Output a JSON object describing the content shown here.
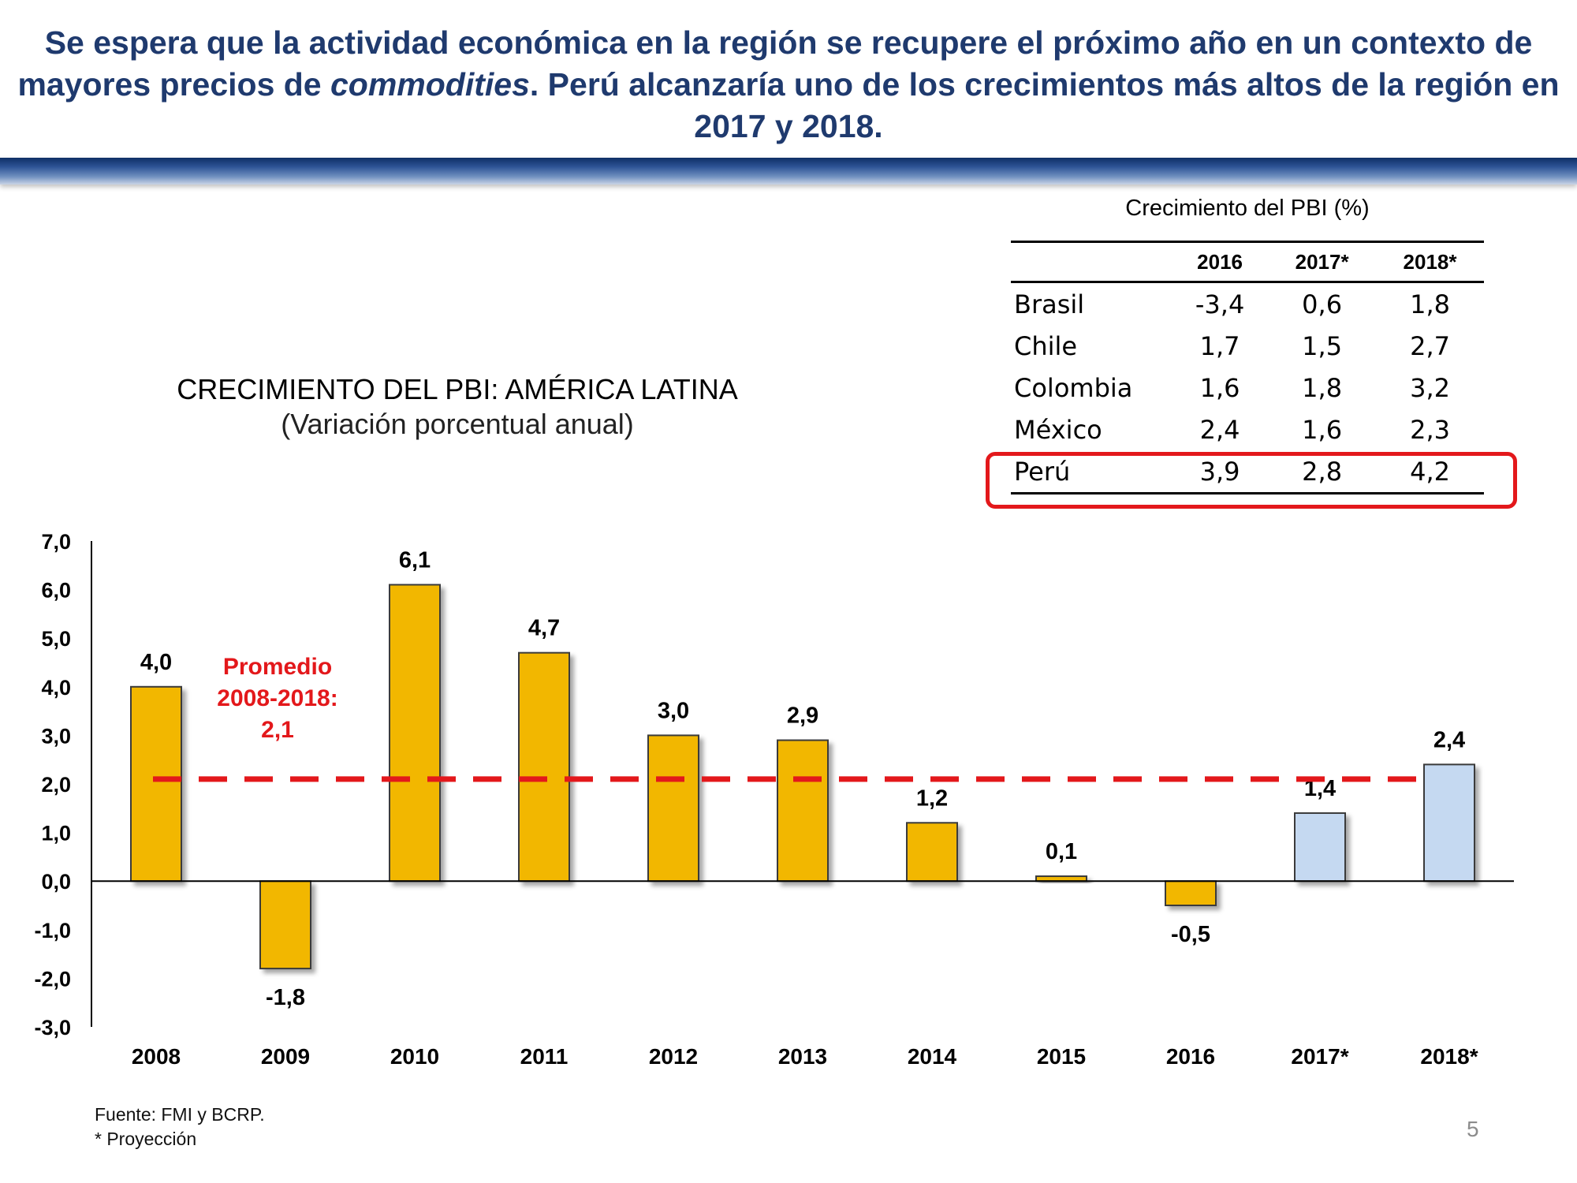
{
  "headline": {
    "part1": "Se espera que la actividad económica en la región se recupere el próximo año en un contexto de mayores precios de ",
    "italic": "commodities",
    "part2": ". Perú alcanzaría uno de los crecimientos más altos de la región en 2017 y 2018."
  },
  "colors": {
    "headline": "#1f3a6e",
    "historical_bar": "#f2b705",
    "projection_bar": "#c5d9f1",
    "average_line": "#e3181b",
    "highlight_border": "#e3181b"
  },
  "table": {
    "title": "Crecimiento del PBI (%)",
    "headers": [
      "",
      "2016",
      "2017*",
      "2018*"
    ],
    "rows": [
      {
        "country": "Brasil",
        "values": [
          "-3,4",
          "0,6",
          "1,8"
        ]
      },
      {
        "country": "Chile",
        "values": [
          "1,7",
          "1,5",
          "2,7"
        ]
      },
      {
        "country": "Colombia",
        "values": [
          "1,6",
          "1,8",
          "3,2"
        ]
      },
      {
        "country": "México",
        "values": [
          "2,4",
          "1,6",
          "2,3"
        ]
      },
      {
        "country": "Perú",
        "values": [
          "3,9",
          "2,8",
          "4,2"
        ]
      }
    ],
    "highlighted_row": "Perú"
  },
  "chart_data": {
    "type": "bar",
    "title": "CRECIMIENTO DEL PBI: AMÉRICA LATINA",
    "subtitle": "(Variación porcentual anual)",
    "categories": [
      "2008",
      "2009",
      "2010",
      "2011",
      "2012",
      "2013",
      "2014",
      "2015",
      "2016",
      "2017*",
      "2018*"
    ],
    "values": [
      4.0,
      -1.8,
      6.1,
      4.7,
      3.0,
      2.9,
      1.2,
      0.1,
      -0.5,
      1.4,
      2.4
    ],
    "value_labels": [
      "4,0",
      "-1,8",
      "6,1",
      "4,7",
      "3,0",
      "2,9",
      "1,2",
      "0,1",
      "-0,5",
      "1,4",
      "2,4"
    ],
    "projection": [
      false,
      false,
      false,
      false,
      false,
      false,
      false,
      false,
      false,
      true,
      true
    ],
    "ylim": [
      -3.0,
      7.0
    ],
    "yticks": [
      "7,0",
      "6,0",
      "5,0",
      "4,0",
      "3,0",
      "2,0",
      "1,0",
      "0,0",
      "-1,0",
      "-2,0",
      "-3,0"
    ],
    "ytick_values": [
      7,
      6,
      5,
      4,
      3,
      2,
      1,
      0,
      -1,
      -2,
      -3
    ],
    "average": {
      "value": 2.1,
      "label_lines": [
        "Promedio",
        "2008-2018:",
        "2,1"
      ],
      "style": "dashed"
    },
    "grid": false,
    "legend": "none"
  },
  "footer": {
    "source": "Fuente: FMI y BCRP.",
    "note": "* Proyección",
    "page_number": "5"
  }
}
